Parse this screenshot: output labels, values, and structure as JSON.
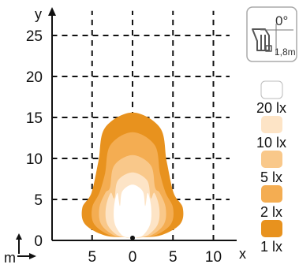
{
  "chart_data": {
    "type": "isolux-diagram",
    "xlabel": "x",
    "ylabel": "y",
    "xlim": [
      -15,
      13
    ],
    "ylim": [
      0,
      28
    ],
    "x_ticks": [
      {
        "value": -5,
        "label": "5"
      },
      {
        "value": 0,
        "label": "0"
      },
      {
        "value": 5,
        "label": "5"
      },
      {
        "value": 10,
        "label": "10"
      }
    ],
    "y_ticks": [
      {
        "value": 0,
        "label": "0"
      },
      {
        "value": 5,
        "label": "5"
      },
      {
        "value": 10,
        "label": "10"
      },
      {
        "value": 15,
        "label": "15"
      },
      {
        "value": 20,
        "label": "20"
      },
      {
        "value": 25,
        "label": "25"
      }
    ],
    "grid": "dashed",
    "unit_label": "m",
    "lamp": {
      "angle": "0°",
      "height": "1,8m"
    },
    "contours": [
      {
        "name": "1 lx",
        "color": "#E8921E",
        "reach": 15.6,
        "halfwidth": 6.2
      },
      {
        "name": "2 lx",
        "color": "#F4AD52",
        "reach": 13.2,
        "halfwidth": 5.0
      },
      {
        "name": "5 lx",
        "color": "#F9C88A",
        "reach": 10.4,
        "halfwidth": 4.1
      },
      {
        "name": "10 lx",
        "color": "#FDE4C6",
        "reach": 8.3,
        "halfwidth": 3.3
      },
      {
        "name": "20 lx",
        "color": "#FFFFFF",
        "reach": 6.8,
        "halfwidth": 2.3
      }
    ],
    "legend": [
      {
        "label": "20 lx",
        "color": "#FFFFFF"
      },
      {
        "label": "10 lx",
        "color": "#FDE4C6"
      },
      {
        "label": "5 lx",
        "color": "#F9C88A"
      },
      {
        "label": "2 lx",
        "color": "#F4AD52"
      },
      {
        "label": "1 lx",
        "color": "#E8921E"
      }
    ],
    "legend_position": "right"
  }
}
